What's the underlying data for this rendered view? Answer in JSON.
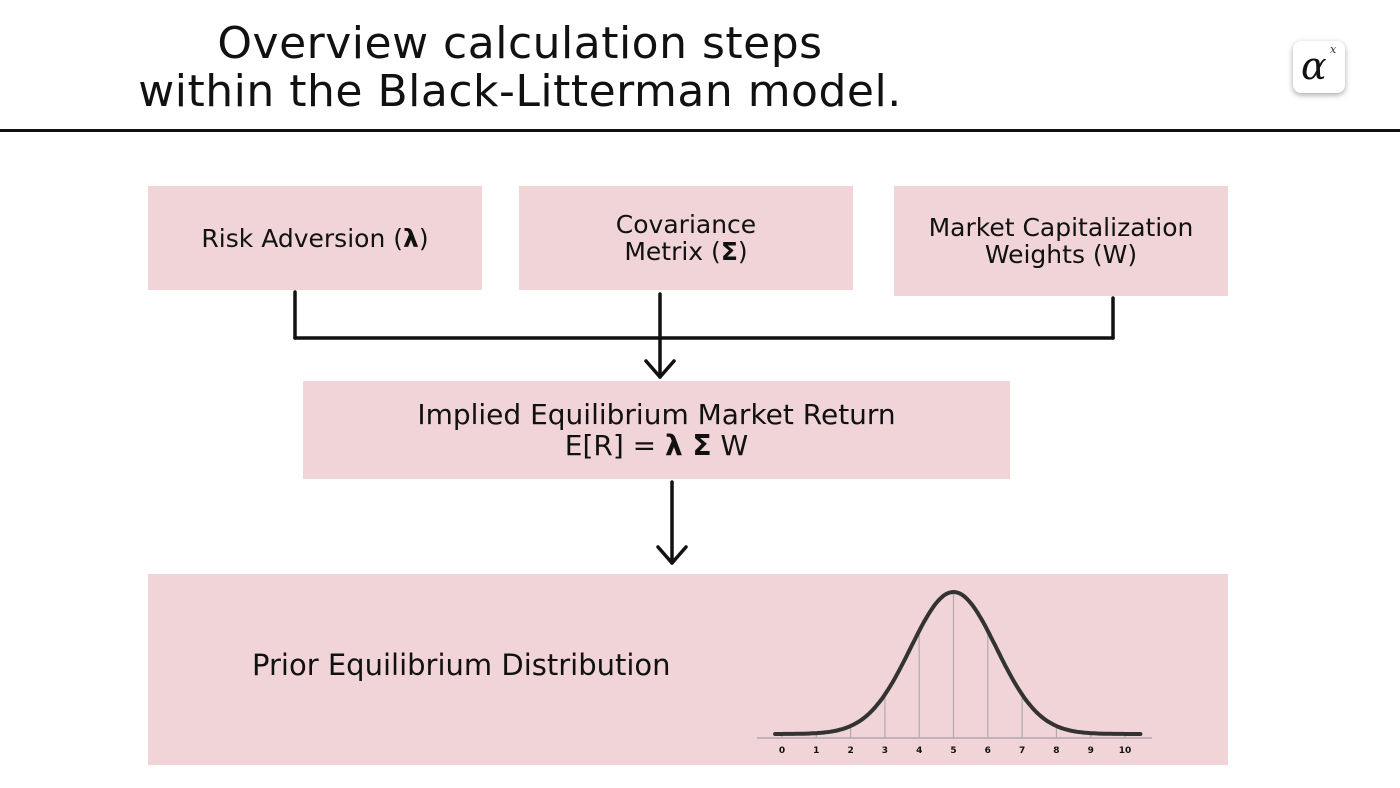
{
  "title": {
    "line1": "Overview calculation steps",
    "line2": "within the Black-Litterman model."
  },
  "logo": {
    "symbol": "α",
    "superscript": "x"
  },
  "inputs": {
    "risk": {
      "text": "Risk Adversion (",
      "symbol": "λ",
      "close": ")"
    },
    "covariance": {
      "line1": "Covariance",
      "line2_text": "Metrix (",
      "line2_symbol": "Σ",
      "line2_close": ")"
    },
    "market": {
      "line1": "Market Capitalization",
      "line2": "Weights (W)"
    }
  },
  "implied": {
    "line1": "Implied Equilibrium Market Return",
    "formula_prefix": "E[R] = ",
    "formula_symbols": "λ Σ",
    "formula_suffix": " W"
  },
  "prior": {
    "label": "Prior Equilibrium Distribution",
    "axis_ticks": [
      "0",
      "1",
      "2",
      "3",
      "4",
      "5",
      "6",
      "7",
      "8",
      "9",
      "10"
    ]
  },
  "colors": {
    "box_fill": "#f0d4d7",
    "line": "#111111",
    "curve": "#333333",
    "grid": "#b0aab0"
  }
}
